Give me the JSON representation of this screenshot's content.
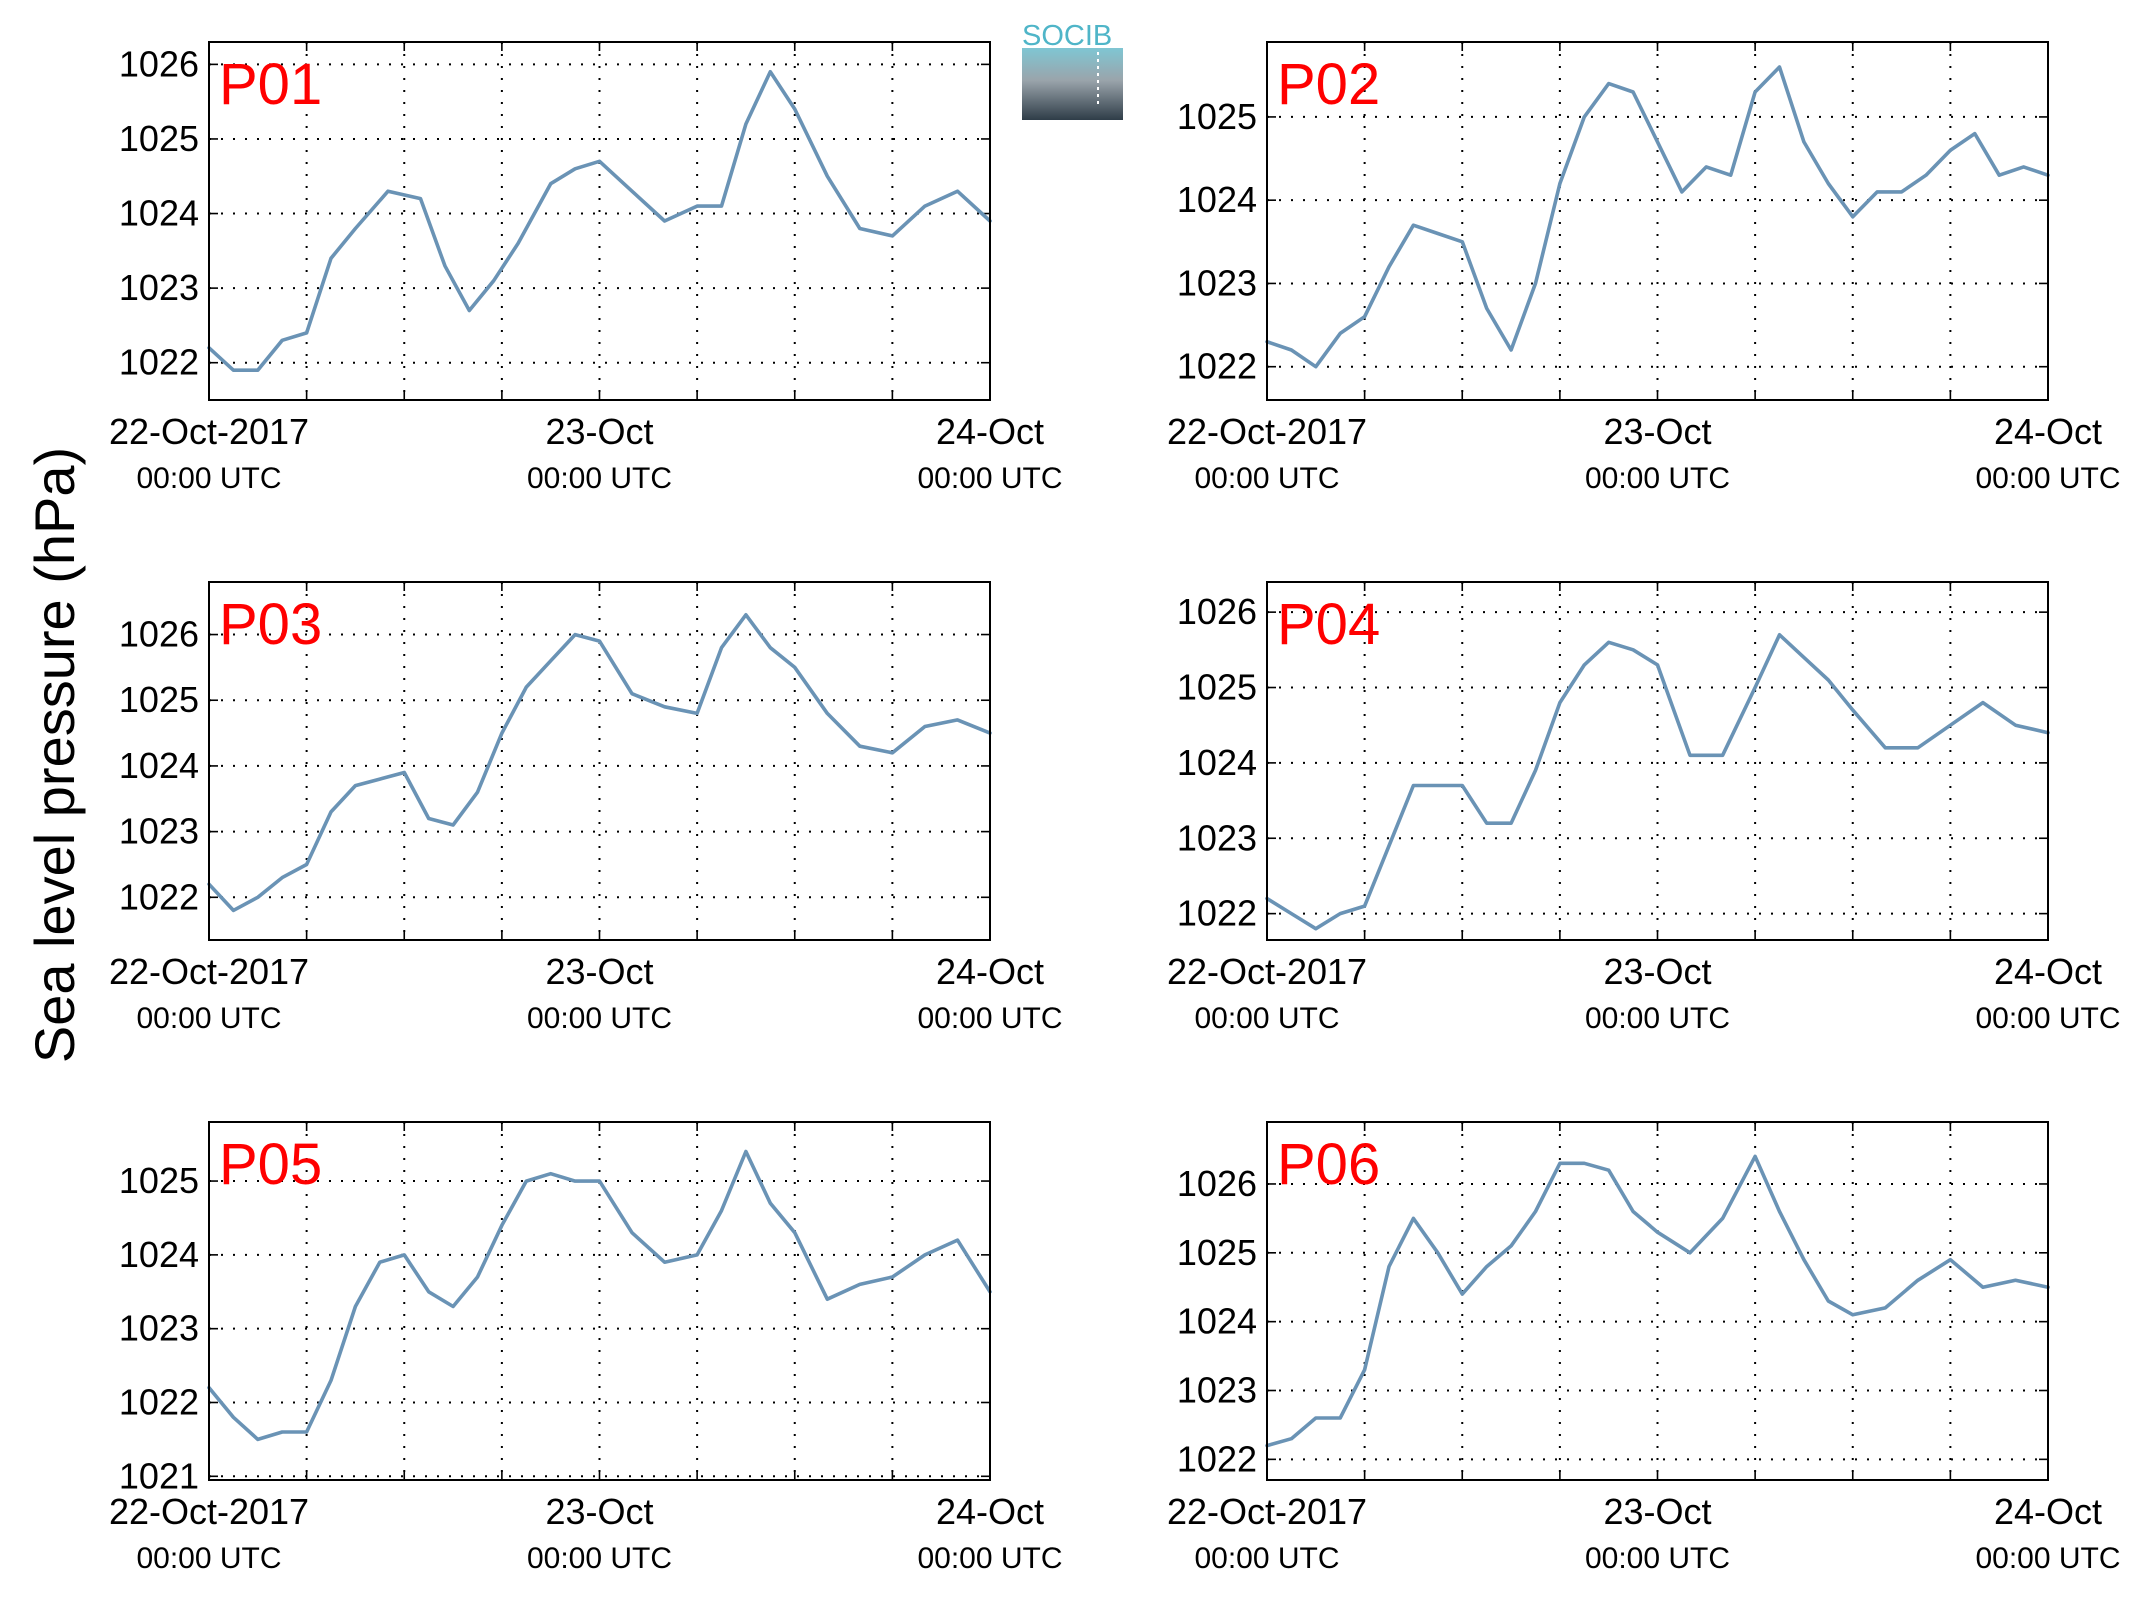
{
  "figure": {
    "ylabel": "Sea level pressure (hPa)",
    "logo_text": "SOCIB",
    "series_color": "#6a93b5",
    "title_color": "#ff0000",
    "x_range": [
      "2017-10-22T00:00Z",
      "2017-10-24T00:00Z"
    ],
    "grid": true,
    "grid_style": "dotted",
    "x_ticks": [
      {
        "date": "22-Oct-2017",
        "time": "00:00 UTC"
      },
      {
        "date": "23-Oct",
        "time": "00:00 UTC"
      },
      {
        "date": "24-Oct",
        "time": "00:00 UTC"
      }
    ]
  },
  "chart_data": [
    {
      "type": "line",
      "title": "P01",
      "ylim": [
        1021.5,
        1026.3
      ],
      "yticks": [
        "1022",
        "1023",
        "1024",
        "1025",
        "1026"
      ],
      "x_hours": [
        0,
        1.5,
        3,
        4.5,
        6,
        7.5,
        9,
        11,
        13,
        14.5,
        16,
        17.5,
        19,
        21,
        22.5,
        24,
        26,
        28,
        30,
        31.5,
        33,
        34.5,
        36,
        38,
        40,
        42,
        44,
        46,
        48
      ],
      "values": [
        1022.2,
        1021.9,
        1021.9,
        1022.3,
        1022.4,
        1023.4,
        1023.8,
        1024.3,
        1024.2,
        1023.3,
        1022.7,
        1023.1,
        1023.6,
        1024.4,
        1024.6,
        1024.7,
        1024.3,
        1023.9,
        1024.1,
        1024.1,
        1025.2,
        1025.9,
        1025.4,
        1024.5,
        1023.8,
        1023.7,
        1024.1,
        1024.3,
        1023.9
      ]
    },
    {
      "type": "line",
      "title": "P02",
      "ylim": [
        1021.6,
        1025.9
      ],
      "yticks": [
        "1022",
        "1023",
        "1024",
        "1025"
      ],
      "x_hours": [
        0,
        1.5,
        3,
        4.5,
        6,
        7.5,
        9,
        10.5,
        12,
        13.5,
        15,
        16.5,
        18,
        19.5,
        21,
        22.5,
        24,
        25.5,
        27,
        28.5,
        30,
        31.5,
        33,
        34.5,
        36,
        37.5,
        39,
        40.5,
        42,
        43.5,
        45,
        46.5,
        48
      ],
      "values": [
        1022.3,
        1022.2,
        1022.0,
        1022.4,
        1022.6,
        1023.2,
        1023.7,
        1023.6,
        1023.5,
        1022.7,
        1022.2,
        1023.0,
        1024.2,
        1025.0,
        1025.4,
        1025.3,
        1024.7,
        1024.1,
        1024.4,
        1024.3,
        1025.3,
        1025.6,
        1024.7,
        1024.2,
        1023.8,
        1024.1,
        1024.1,
        1024.3,
        1024.6,
        1024.8,
        1024.3,
        1024.4,
        1024.3
      ]
    },
    {
      "type": "line",
      "title": "P03",
      "ylim": [
        1021.35,
        1026.8
      ],
      "yticks": [
        "1022",
        "1023",
        "1024",
        "1025",
        "1026"
      ],
      "x_hours": [
        0,
        1.5,
        3,
        4.5,
        6,
        7.5,
        9,
        10.5,
        12,
        13.5,
        15,
        16.5,
        18,
        19.5,
        21,
        22.5,
        24,
        26,
        28,
        30,
        31.5,
        33,
        34.5,
        36,
        38,
        40,
        42,
        44,
        46,
        48
      ],
      "values": [
        1022.2,
        1021.8,
        1022.0,
        1022.3,
        1022.5,
        1023.3,
        1023.7,
        1023.8,
        1023.9,
        1023.2,
        1023.1,
        1023.6,
        1024.5,
        1025.2,
        1025.6,
        1026.0,
        1025.9,
        1025.1,
        1024.9,
        1024.8,
        1025.8,
        1026.3,
        1025.8,
        1025.5,
        1024.8,
        1024.3,
        1024.2,
        1024.6,
        1024.7,
        1024.5
      ]
    },
    {
      "type": "line",
      "title": "P04",
      "ylim": [
        1021.65,
        1026.4
      ],
      "yticks": [
        "1022",
        "1023",
        "1024",
        "1025",
        "1026"
      ],
      "x_hours": [
        0,
        1.5,
        3,
        4.5,
        6,
        7.5,
        9,
        10.5,
        12,
        13.5,
        15,
        16.5,
        18,
        19.5,
        21,
        22.5,
        24,
        26,
        28,
        30,
        31.5,
        33,
        34.5,
        36,
        38,
        40,
        42,
        44,
        46,
        48
      ],
      "values": [
        1022.2,
        1022.0,
        1021.8,
        1022.0,
        1022.1,
        1022.9,
        1023.7,
        1023.7,
        1023.7,
        1023.2,
        1023.2,
        1023.9,
        1024.8,
        1025.3,
        1025.6,
        1025.5,
        1025.3,
        1024.1,
        1024.1,
        1025.0,
        1025.7,
        1025.4,
        1025.1,
        1024.7,
        1024.2,
        1024.2,
        1024.5,
        1024.8,
        1024.5,
        1024.4
      ]
    },
    {
      "type": "line",
      "title": "P05",
      "ylim": [
        1020.95,
        1025.8
      ],
      "yticks": [
        "1021",
        "1022",
        "1023",
        "1024",
        "1025"
      ],
      "x_hours": [
        0,
        1.5,
        3,
        4.5,
        6,
        7.5,
        9,
        10.5,
        12,
        13.5,
        15,
        16.5,
        18,
        19.5,
        21,
        22.5,
        24,
        26,
        28,
        30,
        31.5,
        33,
        34.5,
        36,
        38,
        40,
        42,
        44,
        46,
        48
      ],
      "values": [
        1022.2,
        1021.8,
        1021.5,
        1021.6,
        1021.6,
        1022.3,
        1023.3,
        1023.9,
        1024.0,
        1023.5,
        1023.3,
        1023.7,
        1024.4,
        1025.0,
        1025.1,
        1025.0,
        1025.0,
        1024.3,
        1023.9,
        1024.0,
        1024.6,
        1025.4,
        1024.7,
        1024.3,
        1023.4,
        1023.6,
        1023.7,
        1024.0,
        1024.2,
        1023.5
      ]
    },
    {
      "type": "line",
      "title": "P06",
      "ylim": [
        1021.7,
        1026.9
      ],
      "yticks": [
        "1022",
        "1023",
        "1024",
        "1025",
        "1026"
      ],
      "x_hours": [
        0,
        1.5,
        3,
        4.5,
        6,
        7.5,
        9,
        10.5,
        12,
        13.5,
        15,
        16.5,
        18,
        19.5,
        21,
        22.5,
        24,
        26,
        28,
        30,
        31.5,
        33,
        34.5,
        36,
        38,
        40,
        42,
        44,
        46,
        48
      ],
      "values": [
        1022.2,
        1022.3,
        1022.6,
        1022.6,
        1023.3,
        1024.8,
        1025.5,
        1025.0,
        1024.4,
        1024.8,
        1025.1,
        1025.6,
        1026.3,
        1026.3,
        1026.2,
        1025.6,
        1025.3,
        1025.0,
        1025.5,
        1026.4,
        1025.6,
        1024.9,
        1024.3,
        1024.1,
        1024.2,
        1024.6,
        1024.9,
        1024.5,
        1024.6,
        1024.5
      ]
    }
  ]
}
